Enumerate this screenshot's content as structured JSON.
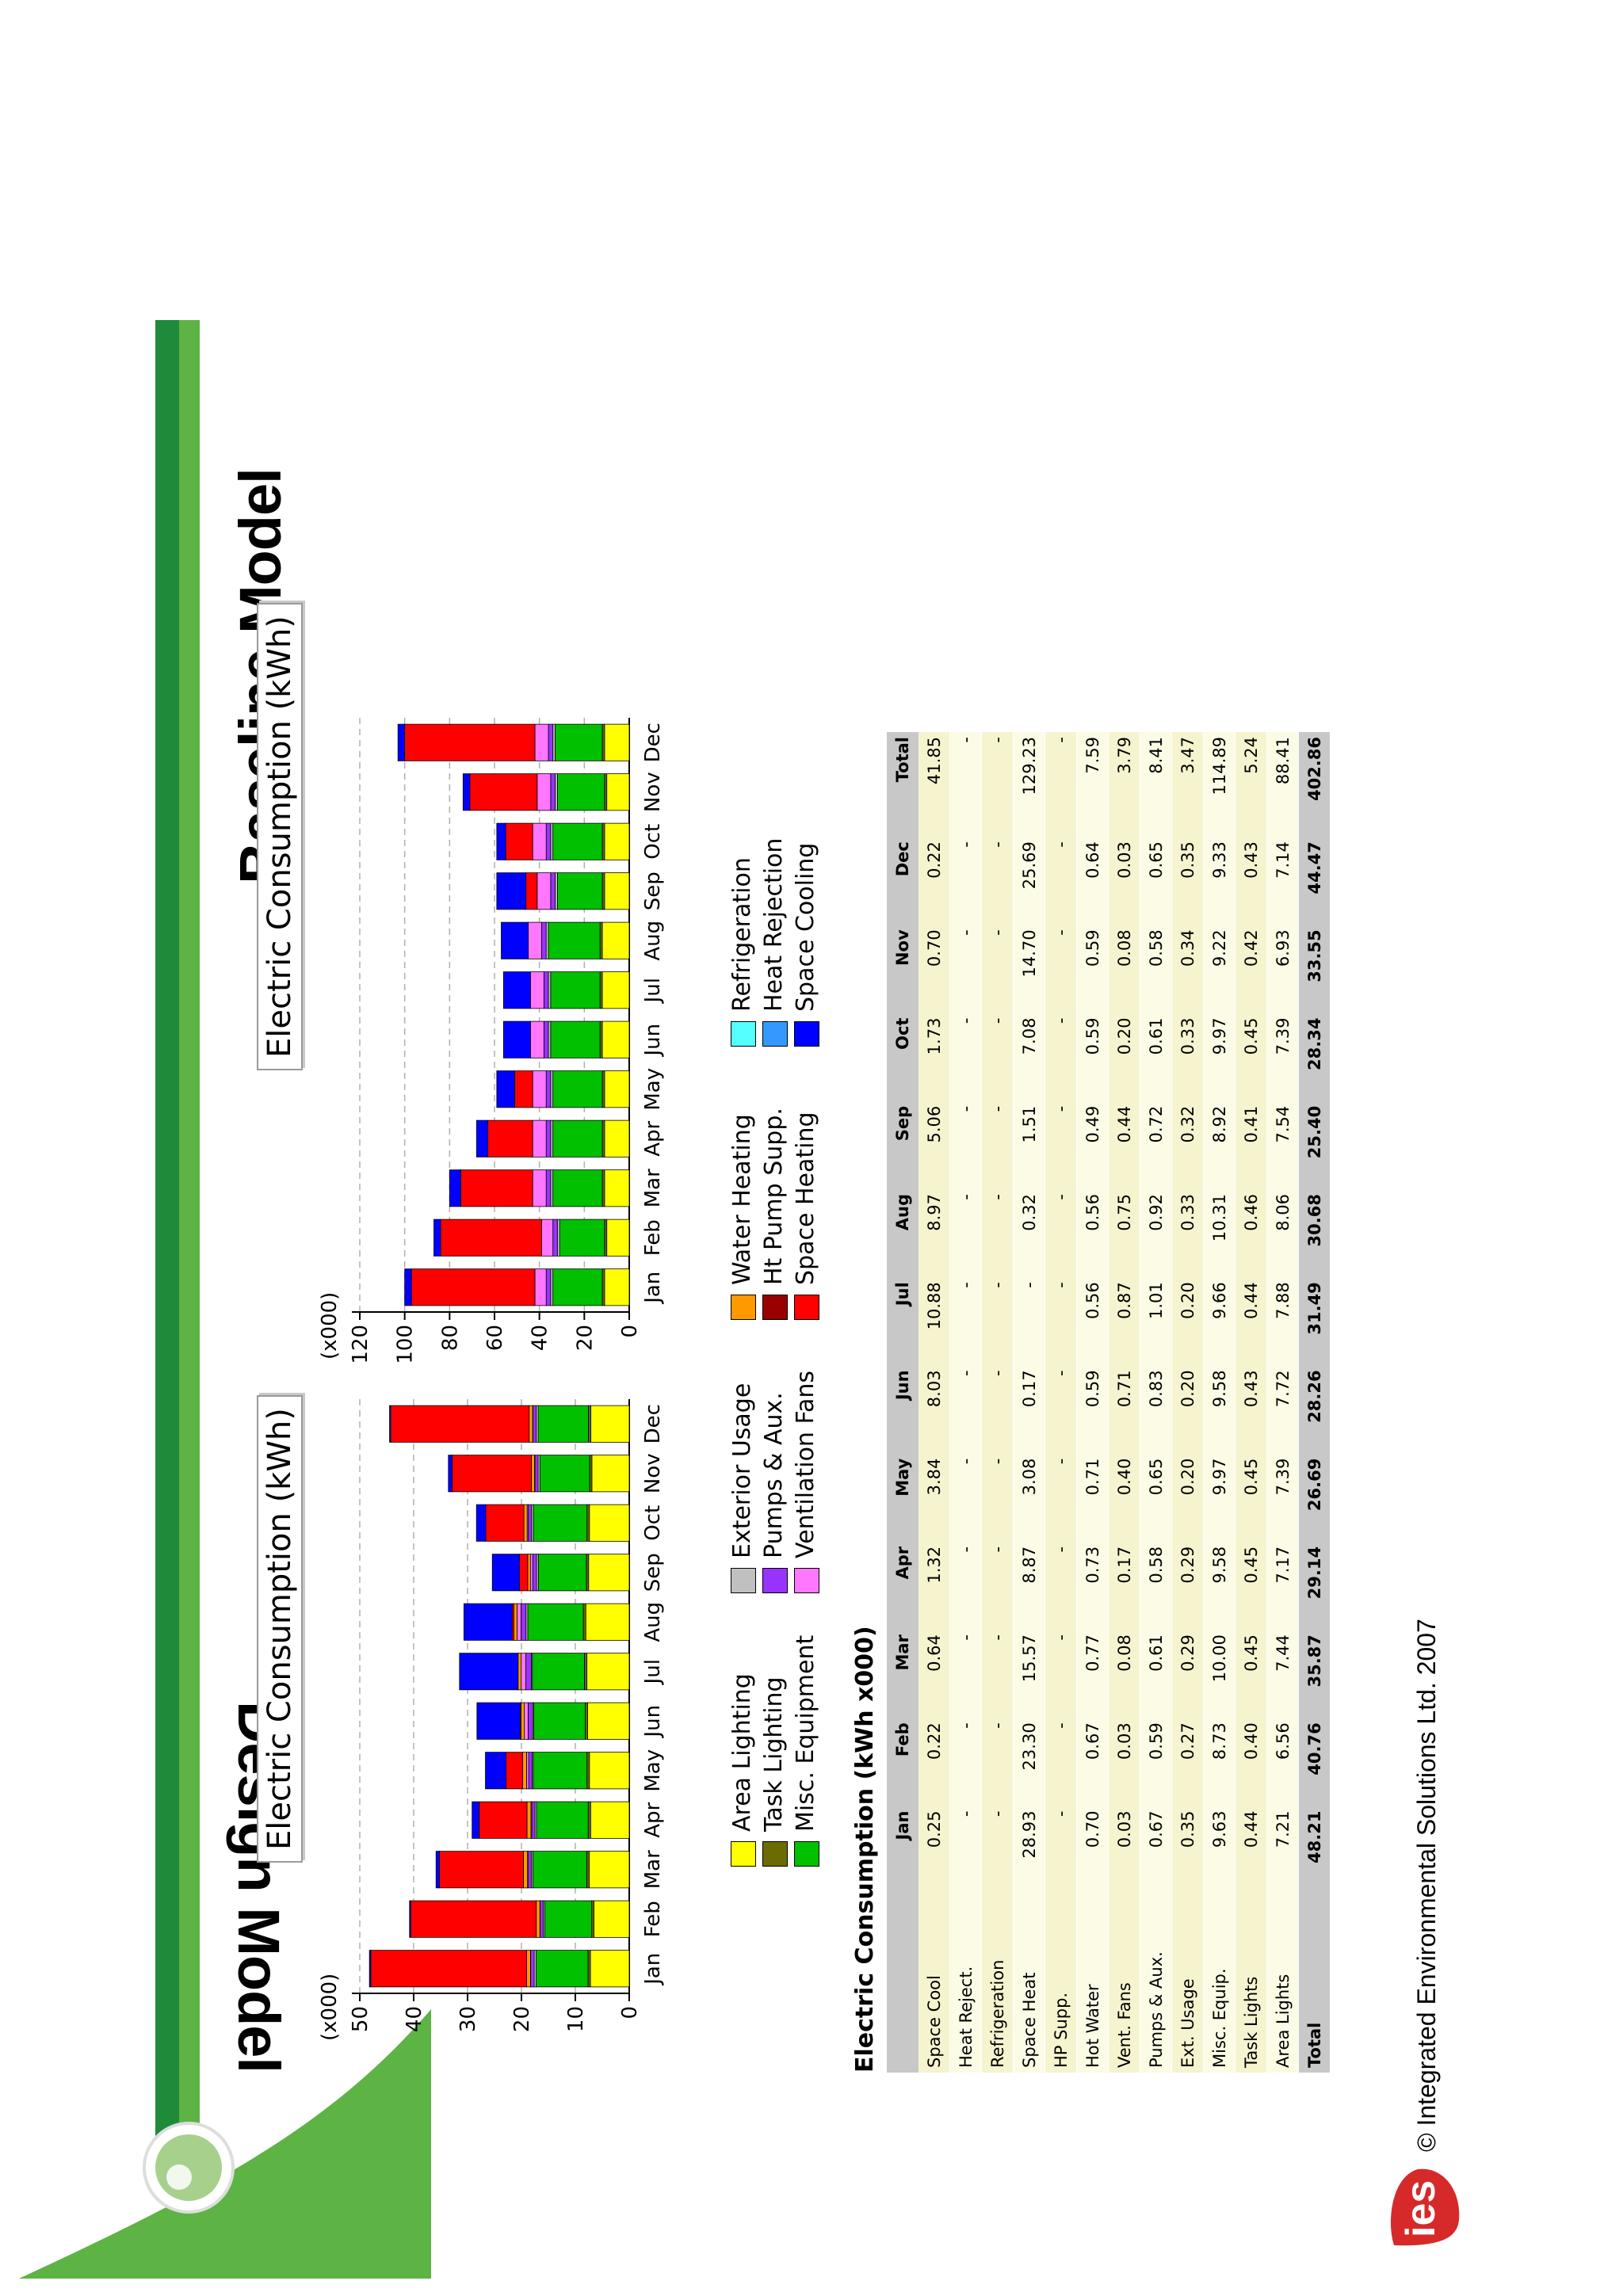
{
  "headings": {
    "left": "Design Model",
    "right": "Baseline Model"
  },
  "colors": {
    "area_lighting": "#ffff00",
    "task_lighting": "#6b6b00",
    "misc_equipment": "#00c000",
    "exterior_usage": "#c0c0c0",
    "pumps_aux": "#9933ff",
    "ventilation_fans": "#ff77ff",
    "water_heating": "#ff9900",
    "ht_pump_supp": "#990000",
    "space_heating": "#ff0000",
    "refrigeration": "#55ffff",
    "heat_rejection": "#3399ff",
    "space_cooling": "#0000ff",
    "brand_green_dark": "#1e8a3a",
    "brand_green_light": "#5db344",
    "logo_red": "#d62a2a"
  },
  "legend": [
    {
      "label": "Area Lighting",
      "color": "#ffff00"
    },
    {
      "label": "Task Lighting",
      "color": "#6b6b00"
    },
    {
      "label": "Misc. Equipment",
      "color": "#00c000"
    },
    {
      "label": "Exterior Usage",
      "color": "#c0c0c0"
    },
    {
      "label": "Pumps & Aux.",
      "color": "#9933ff"
    },
    {
      "label": "Ventilation Fans",
      "color": "#ff77ff"
    },
    {
      "label": "Water Heating",
      "color": "#ff9900"
    },
    {
      "label": "Ht Pump Supp.",
      "color": "#990000"
    },
    {
      "label": "Space Heating",
      "color": "#ff0000"
    },
    {
      "label": "Refrigeration",
      "color": "#55ffff"
    },
    {
      "label": "Heat Rejection",
      "color": "#3399ff"
    },
    {
      "label": "Space Cooling",
      "color": "#0000ff"
    }
  ],
  "chart_data": [
    {
      "type": "bar",
      "stacked": true,
      "title": "Electric Consumption (kWh)",
      "yunit": "(x000)",
      "ylim": [
        0,
        50
      ],
      "yticks": [
        "0",
        "10",
        "20",
        "30",
        "40",
        "50"
      ],
      "ytick_values": [
        0,
        10,
        20,
        30,
        40,
        50
      ],
      "grid": true,
      "categories": [
        "Jan",
        "Feb",
        "Mar",
        "Apr",
        "May",
        "Jun",
        "Jul",
        "Aug",
        "Sep",
        "Oct",
        "Nov",
        "Dec"
      ],
      "series": [
        {
          "name": "Area Lighting",
          "color": "#ffff00",
          "values": [
            7.21,
            6.56,
            7.44,
            7.17,
            7.39,
            7.72,
            7.88,
            8.06,
            7.54,
            7.39,
            6.93,
            7.14
          ]
        },
        {
          "name": "Task Lighting",
          "color": "#6b6b00",
          "values": [
            0.44,
            0.4,
            0.45,
            0.45,
            0.45,
            0.43,
            0.44,
            0.46,
            0.41,
            0.45,
            0.42,
            0.43
          ]
        },
        {
          "name": "Misc. Equipment",
          "color": "#00c000",
          "values": [
            9.63,
            8.73,
            10.0,
            9.58,
            9.97,
            9.58,
            9.66,
            10.31,
            8.92,
            9.97,
            9.22,
            9.33
          ]
        },
        {
          "name": "Exterior Usage",
          "color": "#c0c0c0",
          "values": [
            0.35,
            0.27,
            0.29,
            0.29,
            0.2,
            0.2,
            0.2,
            0.33,
            0.32,
            0.33,
            0.34,
            0.35
          ]
        },
        {
          "name": "Pumps & Aux.",
          "color": "#9933ff",
          "values": [
            0.67,
            0.59,
            0.61,
            0.58,
            0.65,
            0.83,
            1.01,
            0.92,
            0.72,
            0.61,
            0.58,
            0.65
          ]
        },
        {
          "name": "Ventilation Fans",
          "color": "#ff77ff",
          "values": [
            0.03,
            0.03,
            0.08,
            0.17,
            0.4,
            0.71,
            0.87,
            0.75,
            0.44,
            0.2,
            0.08,
            0.03
          ]
        },
        {
          "name": "Water Heating",
          "color": "#ff9900",
          "values": [
            0.7,
            0.67,
            0.77,
            0.73,
            0.71,
            0.59,
            0.56,
            0.56,
            0.49,
            0.59,
            0.59,
            0.64
          ]
        },
        {
          "name": "Ht Pump Supp.",
          "color": "#990000",
          "values": [
            0,
            0,
            0,
            0,
            0,
            0,
            0,
            0,
            0,
            0,
            0,
            0
          ]
        },
        {
          "name": "Space Heating",
          "color": "#ff0000",
          "values": [
            28.93,
            23.3,
            15.57,
            8.87,
            3.08,
            0.17,
            0,
            0.32,
            1.51,
            7.08,
            14.7,
            25.69
          ]
        },
        {
          "name": "Refrigeration",
          "color": "#55ffff",
          "values": [
            0,
            0,
            0,
            0,
            0,
            0,
            0,
            0,
            0,
            0,
            0,
            0
          ]
        },
        {
          "name": "Heat Rejection",
          "color": "#3399ff",
          "values": [
            0,
            0,
            0,
            0,
            0,
            0,
            0,
            0,
            0,
            0,
            0,
            0
          ]
        },
        {
          "name": "Space Cooling",
          "color": "#0000ff",
          "values": [
            0.25,
            0.22,
            0.64,
            1.32,
            3.84,
            8.03,
            10.88,
            8.97,
            5.06,
            1.73,
            0.7,
            0.22
          ]
        }
      ]
    },
    {
      "type": "bar",
      "stacked": true,
      "title": "Electric Consumption (kWh)",
      "yunit": "(x000)",
      "ylim": [
        0,
        120
      ],
      "yticks": [
        "0",
        "20",
        "40",
        "60",
        "80",
        "100",
        "120"
      ],
      "ytick_values": [
        0,
        20,
        40,
        60,
        80,
        100,
        120
      ],
      "grid": true,
      "categories": [
        "Jan",
        "Feb",
        "Mar",
        "Apr",
        "May",
        "Jun",
        "Jul",
        "Aug",
        "Sep",
        "Oct",
        "Nov",
        "Dec"
      ],
      "series": [
        {
          "name": "Area Lighting",
          "color": "#ffff00",
          "values": [
            11,
            10,
            11,
            11,
            11,
            12,
            12,
            12,
            11,
            11,
            10,
            11
          ]
        },
        {
          "name": "Task Lighting",
          "color": "#6b6b00",
          "values": [
            1,
            1,
            1,
            1,
            1,
            1,
            1,
            1,
            1,
            1,
            1,
            1
          ]
        },
        {
          "name": "Misc. Equipment",
          "color": "#00c000",
          "values": [
            22,
            20,
            22,
            22,
            22,
            22,
            22,
            23,
            20,
            22,
            21,
            21
          ]
        },
        {
          "name": "Exterior Usage",
          "color": "#c0c0c0",
          "values": [
            1,
            1,
            1,
            1,
            1,
            1,
            1,
            1,
            1,
            1,
            1,
            1
          ]
        },
        {
          "name": "Pumps & Aux.",
          "color": "#9933ff",
          "values": [
            2,
            2,
            2,
            2,
            2,
            2,
            2,
            2,
            2,
            2,
            2,
            2
          ]
        },
        {
          "name": "Ventilation Fans",
          "color": "#ff77ff",
          "values": [
            5,
            5,
            6,
            6,
            6,
            6,
            6,
            6,
            6,
            6,
            6,
            6
          ]
        },
        {
          "name": "Water Heating",
          "color": "#ff9900",
          "values": [
            0,
            0,
            0,
            0,
            0,
            0,
            0,
            0,
            0,
            0,
            0,
            0
          ]
        },
        {
          "name": "Ht Pump Supp.",
          "color": "#990000",
          "values": [
            0,
            0,
            0,
            0,
            0,
            0,
            0,
            0,
            0,
            0,
            0,
            0
          ]
        },
        {
          "name": "Space Heating",
          "color": "#ff0000",
          "values": [
            55,
            45,
            32,
            20,
            8,
            0,
            0,
            0,
            5,
            12,
            30,
            58
          ]
        },
        {
          "name": "Refrigeration",
          "color": "#55ffff",
          "values": [
            0,
            0,
            0,
            0,
            0,
            0,
            0,
            0,
            0,
            0,
            0,
            0
          ]
        },
        {
          "name": "Heat Rejection",
          "color": "#3399ff",
          "values": [
            0,
            0,
            0,
            0,
            0,
            0,
            0,
            0,
            0,
            0,
            0,
            0
          ]
        },
        {
          "name": "Space Cooling",
          "color": "#0000ff",
          "values": [
            3,
            3,
            5,
            5,
            8,
            12,
            12,
            12,
            13,
            4,
            3,
            3
          ]
        }
      ]
    }
  ],
  "table": {
    "title": "Electric Consumption (kWh x000)",
    "headers": [
      "",
      "Jan",
      "Feb",
      "Mar",
      "Apr",
      "May",
      "Jun",
      "Jul",
      "Aug",
      "Sep",
      "Oct",
      "Nov",
      "Dec",
      "Total"
    ],
    "rows": [
      [
        "Space Cool",
        "0.25",
        "0.22",
        "0.64",
        "1.32",
        "3.84",
        "8.03",
        "10.88",
        "8.97",
        "5.06",
        "1.73",
        "0.70",
        "0.22",
        "41.85"
      ],
      [
        "Heat Reject.",
        "-",
        "-",
        "-",
        "-",
        "-",
        "-",
        "-",
        "-",
        "-",
        "-",
        "-",
        "-",
        "-"
      ],
      [
        "Refrigeration",
        "-",
        "-",
        "-",
        "-",
        "-",
        "-",
        "-",
        "-",
        "-",
        "-",
        "-",
        "-",
        "-"
      ],
      [
        "Space Heat",
        "28.93",
        "23.30",
        "15.57",
        "8.87",
        "3.08",
        "0.17",
        "-",
        "0.32",
        "1.51",
        "7.08",
        "14.70",
        "25.69",
        "129.23"
      ],
      [
        "HP Supp.",
        "-",
        "-",
        "-",
        "-",
        "-",
        "-",
        "-",
        "-",
        "-",
        "-",
        "-",
        "-",
        "-"
      ],
      [
        "Hot Water",
        "0.70",
        "0.67",
        "0.77",
        "0.73",
        "0.71",
        "0.59",
        "0.56",
        "0.56",
        "0.49",
        "0.59",
        "0.59",
        "0.64",
        "7.59"
      ],
      [
        "Vent. Fans",
        "0.03",
        "0.03",
        "0.08",
        "0.17",
        "0.40",
        "0.71",
        "0.87",
        "0.75",
        "0.44",
        "0.20",
        "0.08",
        "0.03",
        "3.79"
      ],
      [
        "Pumps & Aux.",
        "0.67",
        "0.59",
        "0.61",
        "0.58",
        "0.65",
        "0.83",
        "1.01",
        "0.92",
        "0.72",
        "0.61",
        "0.58",
        "0.65",
        "8.41"
      ],
      [
        "Ext. Usage",
        "0.35",
        "0.27",
        "0.29",
        "0.29",
        "0.20",
        "0.20",
        "0.20",
        "0.33",
        "0.32",
        "0.33",
        "0.34",
        "0.35",
        "3.47"
      ],
      [
        "Misc. Equip.",
        "9.63",
        "8.73",
        "10.00",
        "9.58",
        "9.97",
        "9.58",
        "9.66",
        "10.31",
        "8.92",
        "9.97",
        "9.22",
        "9.33",
        "114.89"
      ],
      [
        "Task Lights",
        "0.44",
        "0.40",
        "0.45",
        "0.45",
        "0.45",
        "0.43",
        "0.44",
        "0.46",
        "0.41",
        "0.45",
        "0.42",
        "0.43",
        "5.24"
      ],
      [
        "Area Lights",
        "7.21",
        "6.56",
        "7.44",
        "7.17",
        "7.39",
        "7.72",
        "7.88",
        "8.06",
        "7.54",
        "7.39",
        "6.93",
        "7.14",
        "88.41"
      ]
    ],
    "total": [
      "Total",
      "48.21",
      "40.76",
      "35.87",
      "29.14",
      "26.69",
      "28.26",
      "31.49",
      "30.68",
      "25.40",
      "28.34",
      "33.55",
      "44.47",
      "402.86"
    ]
  },
  "footer": {
    "copyright": "© Integrated Environmental Solutions Ltd. 2007",
    "logo_text": "ies"
  }
}
